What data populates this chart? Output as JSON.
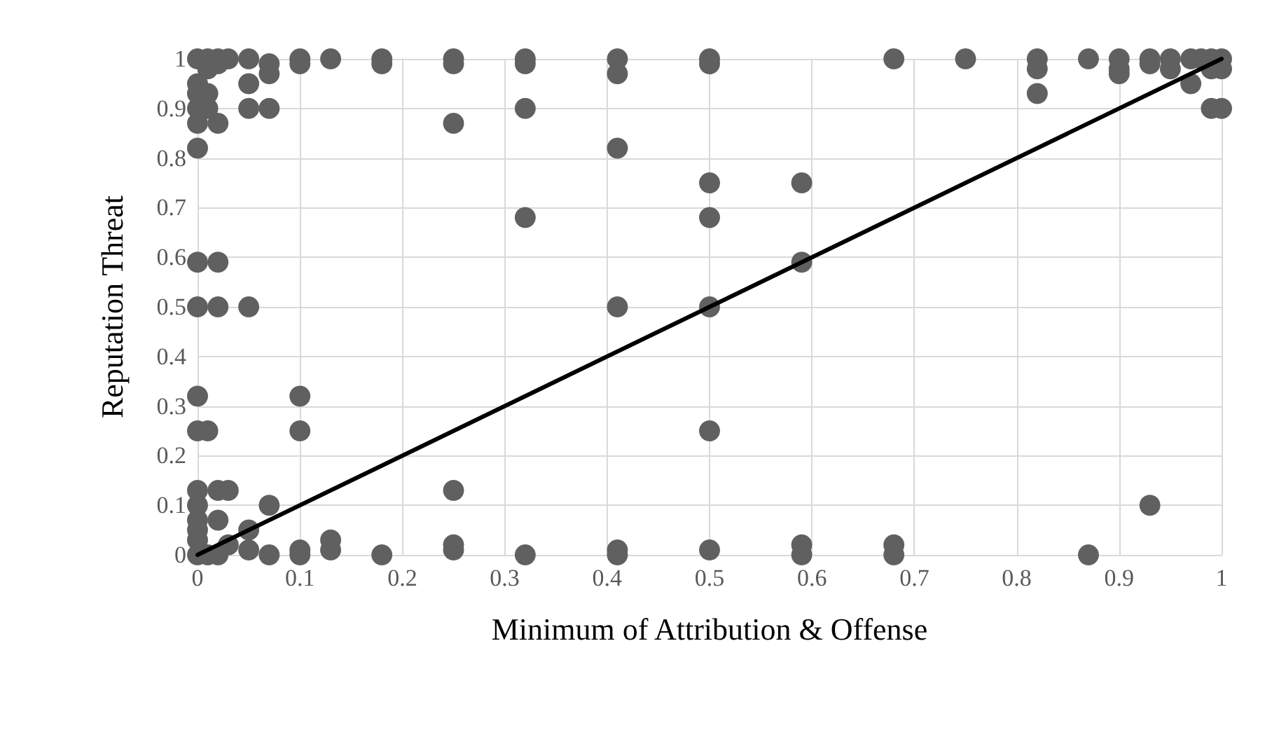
{
  "chart_data": {
    "type": "scatter",
    "xlabel": "Minimum of Attribution & Offense",
    "ylabel": "Reputation Threat",
    "xlim": [
      0,
      1
    ],
    "ylim": [
      0,
      1
    ],
    "xticks": [
      0,
      0.1,
      0.2,
      0.3,
      0.4,
      0.5,
      0.6,
      0.7,
      0.8,
      0.9,
      1
    ],
    "yticks": [
      0,
      0.1,
      0.2,
      0.3,
      0.4,
      0.5,
      0.6,
      0.7,
      0.8,
      0.9,
      1
    ],
    "grid": true,
    "marker": "circle",
    "series": [
      {
        "color": "#606060",
        "x": [
          0,
          0,
          0,
          0,
          0,
          0,
          0,
          0,
          0,
          0,
          0,
          0,
          0,
          0,
          0,
          0,
          0.01,
          0.01,
          0.01,
          0.01,
          0.01,
          0.01,
          0.02,
          0.02,
          0.02,
          0.02,
          0.02,
          0.02,
          0.02,
          0.02,
          0.03,
          0.03,
          0.03,
          0.05,
          0.05,
          0.05,
          0.05,
          0.05,
          0.05,
          0.07,
          0.07,
          0.07,
          0.07,
          0.07,
          0.1,
          0.1,
          0.1,
          0.1,
          0.1,
          0.1,
          0.13,
          0.13,
          0.13,
          0.18,
          0.18,
          0.18,
          0.25,
          0.25,
          0.25,
          0.25,
          0.25,
          0.25,
          0.32,
          0.32,
          0.32,
          0.32,
          0.32,
          0.41,
          0.41,
          0.41,
          0.41,
          0.41,
          0.41,
          0.5,
          0.5,
          0.5,
          0.5,
          0.5,
          0.5,
          0.5,
          0.59,
          0.59,
          0.59,
          0.59,
          0.68,
          0.68,
          0.68,
          0.75,
          0.82,
          0.82,
          0.82,
          0.87,
          0.87,
          0.9,
          0.9,
          0.9,
          0.93,
          0.93,
          0.93,
          0.95,
          0.95,
          0.97,
          0.97,
          0.98,
          0.99,
          0.99,
          0.99,
          1,
          1,
          1
        ],
        "values": [
          1,
          0.95,
          0.93,
          0.9,
          0.87,
          0.82,
          0.59,
          0.5,
          0.32,
          0.25,
          0.13,
          0.1,
          0.07,
          0.05,
          0.03,
          0,
          1,
          0.98,
          0.93,
          0.9,
          0.25,
          0,
          1,
          0.99,
          0.87,
          0.59,
          0.5,
          0.13,
          0.07,
          0,
          1,
          0.13,
          0.02,
          1,
          0.95,
          0.9,
          0.5,
          0.05,
          0.01,
          0.99,
          0.97,
          0.9,
          0.1,
          0,
          1,
          0.99,
          0.32,
          0.25,
          0.01,
          0,
          1,
          0.03,
          0.01,
          1,
          0.99,
          0,
          1,
          0.99,
          0.87,
          0.13,
          0.02,
          0.01,
          1,
          0.99,
          0.9,
          0.68,
          0,
          1,
          0.97,
          0.82,
          0.5,
          0.01,
          0,
          1,
          0.99,
          0.75,
          0.68,
          0.5,
          0.25,
          0.01,
          0.75,
          0.59,
          0.02,
          0,
          1,
          0.02,
          0,
          1,
          1,
          0.98,
          0.93,
          1,
          0,
          1,
          0.98,
          0.97,
          1,
          0.99,
          0.1,
          1,
          0.98,
          1,
          0.95,
          1,
          1,
          0.98,
          0.9,
          1,
          0.98,
          0.9
        ]
      },
      {
        "type": "line",
        "color": "#000000",
        "marker": "none",
        "x": [
          0,
          1
        ],
        "values": [
          0,
          1
        ]
      }
    ]
  }
}
